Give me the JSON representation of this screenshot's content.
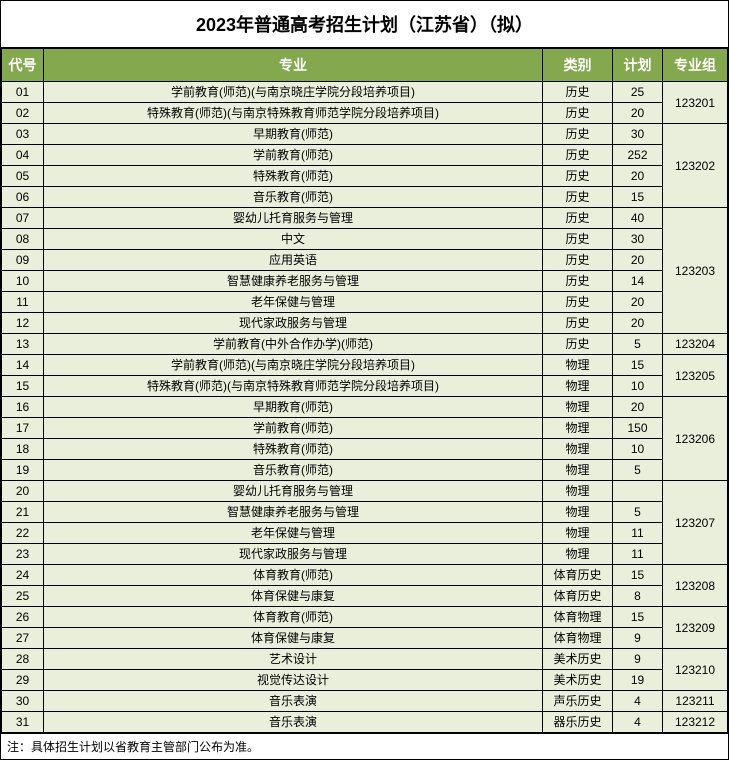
{
  "title": "2023年普通高考招生计划（江苏省）（拟）",
  "headers": {
    "code": "代号",
    "major": "专业",
    "category": "类别",
    "plan": "计划",
    "group": "专业组"
  },
  "colors": {
    "header_bg": "#84a84e",
    "header_text": "#ffffff",
    "row_bg": "#e9efdb",
    "border": "#000000"
  },
  "col_widths": {
    "code": 42,
    "category": 70,
    "plan": 50,
    "group": 65
  },
  "font_sizes": {
    "title": 18,
    "header": 14,
    "body": 12,
    "footnote": 12
  },
  "rows": [
    {
      "code": "01",
      "major": "学前教育(师范)(与南京晓庄学院分段培养项目)",
      "category": "历史",
      "plan": "25",
      "group": "123201",
      "group_rowspan": 2
    },
    {
      "code": "02",
      "major": "特殊教育(师范)(与南京特殊教育师范学院分段培养项目)",
      "category": "历史",
      "plan": "20"
    },
    {
      "code": "03",
      "major": "早期教育(师范)",
      "category": "历史",
      "plan": "30",
      "group": "123202",
      "group_rowspan": 4
    },
    {
      "code": "04",
      "major": "学前教育(师范)",
      "category": "历史",
      "plan": "252"
    },
    {
      "code": "05",
      "major": "特殊教育(师范)",
      "category": "历史",
      "plan": "20"
    },
    {
      "code": "06",
      "major": "音乐教育(师范)",
      "category": "历史",
      "plan": "15"
    },
    {
      "code": "07",
      "major": "婴幼儿托育服务与管理",
      "category": "历史",
      "plan": "40",
      "group": "123203",
      "group_rowspan": 6
    },
    {
      "code": "08",
      "major": "中文",
      "category": "历史",
      "plan": "30"
    },
    {
      "code": "09",
      "major": "应用英语",
      "category": "历史",
      "plan": "20"
    },
    {
      "code": "10",
      "major": "智慧健康养老服务与管理",
      "category": "历史",
      "plan": "14"
    },
    {
      "code": "11",
      "major": "老年保健与管理",
      "category": "历史",
      "plan": "20"
    },
    {
      "code": "12",
      "major": "现代家政服务与管理",
      "category": "历史",
      "plan": "20"
    },
    {
      "code": "13",
      "major": "学前教育(中外合作办学)(师范)",
      "category": "历史",
      "plan": "5",
      "group": "123204",
      "group_rowspan": 1
    },
    {
      "code": "14",
      "major": "学前教育(师范)(与南京晓庄学院分段培养项目)",
      "category": "物理",
      "plan": "15",
      "group": "123205",
      "group_rowspan": 2
    },
    {
      "code": "15",
      "major": "特殊教育(师范)(与南京特殊教育师范学院分段培养项目)",
      "category": "物理",
      "plan": "10"
    },
    {
      "code": "16",
      "major": "早期教育(师范)",
      "category": "物理",
      "plan": "20",
      "group": "123206",
      "group_rowspan": 4
    },
    {
      "code": "17",
      "major": "学前教育(师范)",
      "category": "物理",
      "plan": "150"
    },
    {
      "code": "18",
      "major": "特殊教育(师范)",
      "category": "物理",
      "plan": "10"
    },
    {
      "code": "19",
      "major": "音乐教育(师范)",
      "category": "物理",
      "plan": "5"
    },
    {
      "code": "20",
      "major": "婴幼儿托育服务与管理",
      "category": "物理",
      "plan": "",
      "group": "123207",
      "group_rowspan": 4
    },
    {
      "code": "21",
      "major": "智慧健康养老服务与管理",
      "category": "物理",
      "plan": "5"
    },
    {
      "code": "22",
      "major": "老年保健与管理",
      "category": "物理",
      "plan": "11"
    },
    {
      "code": "23",
      "major": "现代家政服务与管理",
      "category": "物理",
      "plan": "11"
    },
    {
      "code": "24",
      "major": "体育教育(师范)",
      "category": "体育历史",
      "plan": "15",
      "group": "123208",
      "group_rowspan": 2
    },
    {
      "code": "25",
      "major": "体育保健与康复",
      "category": "体育历史",
      "plan": "8"
    },
    {
      "code": "26",
      "major": "体育教育(师范)",
      "category": "体育物理",
      "plan": "15",
      "group": "123209",
      "group_rowspan": 2
    },
    {
      "code": "27",
      "major": "体育保健与康复",
      "category": "体育物理",
      "plan": "9"
    },
    {
      "code": "28",
      "major": "艺术设计",
      "category": "美术历史",
      "plan": "9",
      "group": "123210",
      "group_rowspan": 2
    },
    {
      "code": "29",
      "major": "视觉传达设计",
      "category": "美术历史",
      "plan": "19"
    },
    {
      "code": "30",
      "major": "音乐表演",
      "category": "声乐历史",
      "plan": "4",
      "group": "123211",
      "group_rowspan": 1
    },
    {
      "code": "31",
      "major": "音乐表演",
      "category": "器乐历史",
      "plan": "4",
      "group": "123212",
      "group_rowspan": 1
    }
  ],
  "footnote": "注：具体招生计划以省教育主管部门公布为准。"
}
